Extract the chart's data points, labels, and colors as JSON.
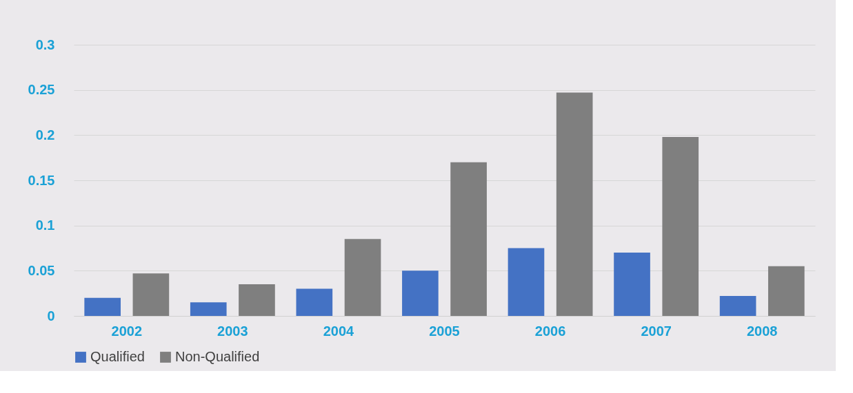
{
  "chart_data": {
    "type": "bar",
    "categories": [
      "2002",
      "2003",
      "2004",
      "2005",
      "2006",
      "2007",
      "2008"
    ],
    "series": [
      {
        "name": "Qualified",
        "color": "#4472c4",
        "values": [
          0.02,
          0.015,
          0.03,
          0.05,
          0.075,
          0.07,
          0.022
        ]
      },
      {
        "name": "Non-Qualified",
        "color": "#7f7f7f",
        "values": [
          0.047,
          0.035,
          0.085,
          0.17,
          0.247,
          0.198,
          0.055
        ]
      }
    ],
    "ylim": [
      0,
      0.3
    ],
    "yticks": [
      0,
      0.05,
      0.1,
      0.15,
      0.2,
      0.25,
      0.3
    ],
    "grid": "y",
    "legend": "bottom"
  }
}
